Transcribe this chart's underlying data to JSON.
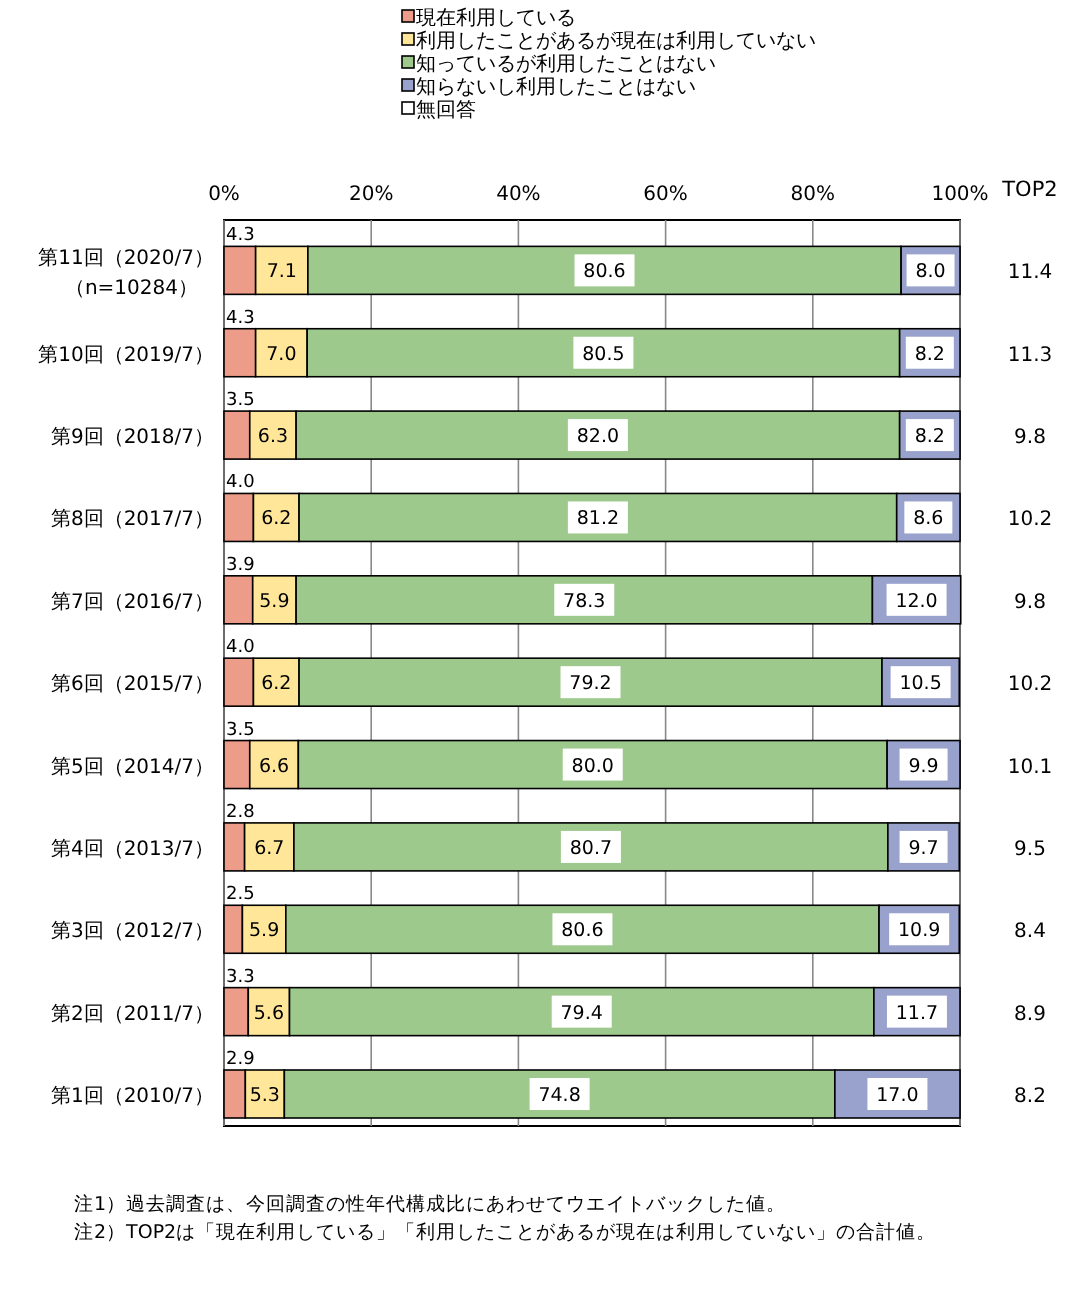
{
  "chart_data": {
    "type": "bar",
    "orientation": "horizontal",
    "stacked": true,
    "grid": "x",
    "legend": "top",
    "categories": [
      "第11回（2020/7）（n=10284）",
      "第10回（2019/7）",
      "第9回（2018/7）",
      "第8回（2017/7）",
      "第7回（2016/7）",
      "第6回（2015/7）",
      "第5回（2014/7）",
      "第4回（2013/7）",
      "第3回（2012/7）",
      "第2回（2011/7）",
      "第1回（2010/7）"
    ],
    "xlim": [
      0,
      100
    ],
    "xticks": [
      {
        "value": 0,
        "label": "0%"
      },
      {
        "value": 20,
        "label": "20%"
      },
      {
        "value": 40,
        "label": "40%"
      },
      {
        "value": 60,
        "label": "60%"
      },
      {
        "value": 80,
        "label": "80%"
      },
      {
        "value": 100,
        "label": "100%"
      }
    ],
    "series": [
      {
        "name": "現在利用している",
        "color": "#ec9c88",
        "values": [
          4.3,
          4.3,
          3.5,
          4.0,
          3.9,
          4.0,
          3.5,
          2.8,
          2.5,
          3.3,
          2.9
        ],
        "value_labels": [
          "4.3",
          "4.3",
          "3.5",
          "4.0",
          "3.9",
          "4.0",
          "3.5",
          "2.8",
          "2.5",
          "3.3",
          "2.9"
        ]
      },
      {
        "name": "利用したことがあるが現在は利用していない",
        "color": "#ffe699",
        "values": [
          7.1,
          7.0,
          6.3,
          6.2,
          5.9,
          6.2,
          6.6,
          6.7,
          5.9,
          5.6,
          5.3
        ],
        "value_labels": [
          "7.1",
          "7.0",
          "6.3",
          "6.2",
          "5.9",
          "6.2",
          "6.6",
          "6.7",
          "5.9",
          "5.6",
          "5.3"
        ]
      },
      {
        "name": "知っているが利用したことはない",
        "color": "#9ec98c",
        "values": [
          80.6,
          80.5,
          82.0,
          81.2,
          78.3,
          79.2,
          80.0,
          80.7,
          80.6,
          79.4,
          74.8
        ],
        "value_labels": [
          "80.6",
          "80.5",
          "82.0",
          "81.2",
          "78.3",
          "79.2",
          "80.0",
          "80.7",
          "80.6",
          "79.4",
          "74.8"
        ]
      },
      {
        "name": "知らないし利用したことはない",
        "color": "#99a2cc",
        "values": [
          8.0,
          8.2,
          8.2,
          8.6,
          12.0,
          10.5,
          9.9,
          9.7,
          10.9,
          11.7,
          17.0
        ],
        "value_labels": [
          "8.0",
          "8.2",
          "8.2",
          "8.6",
          "12.0",
          "10.5",
          "9.9",
          "9.7",
          "10.9",
          "11.7",
          "17.0"
        ]
      },
      {
        "name": "無回答",
        "color": "#ffffff",
        "values": [
          0,
          0,
          0,
          0,
          0,
          0,
          0,
          0,
          0,
          0,
          0
        ],
        "value_labels": [
          null,
          null,
          null,
          null,
          null,
          null,
          null,
          null,
          null,
          null,
          null
        ]
      }
    ],
    "annotations": [
      "TOP2",
      "11.4",
      "11.3",
      "9.8",
      "10.2",
      "9.8",
      "10.2",
      "10.1",
      "9.5",
      "8.4",
      "8.9",
      "8.2",
      "注1）過去調査は、今回調査の性年代構成比にあわせてウエイトバックした値。",
      "注2）TOP2は「現在利用している」「利用したことがあるが現在は利用していない」の合計値。"
    ]
  }
}
